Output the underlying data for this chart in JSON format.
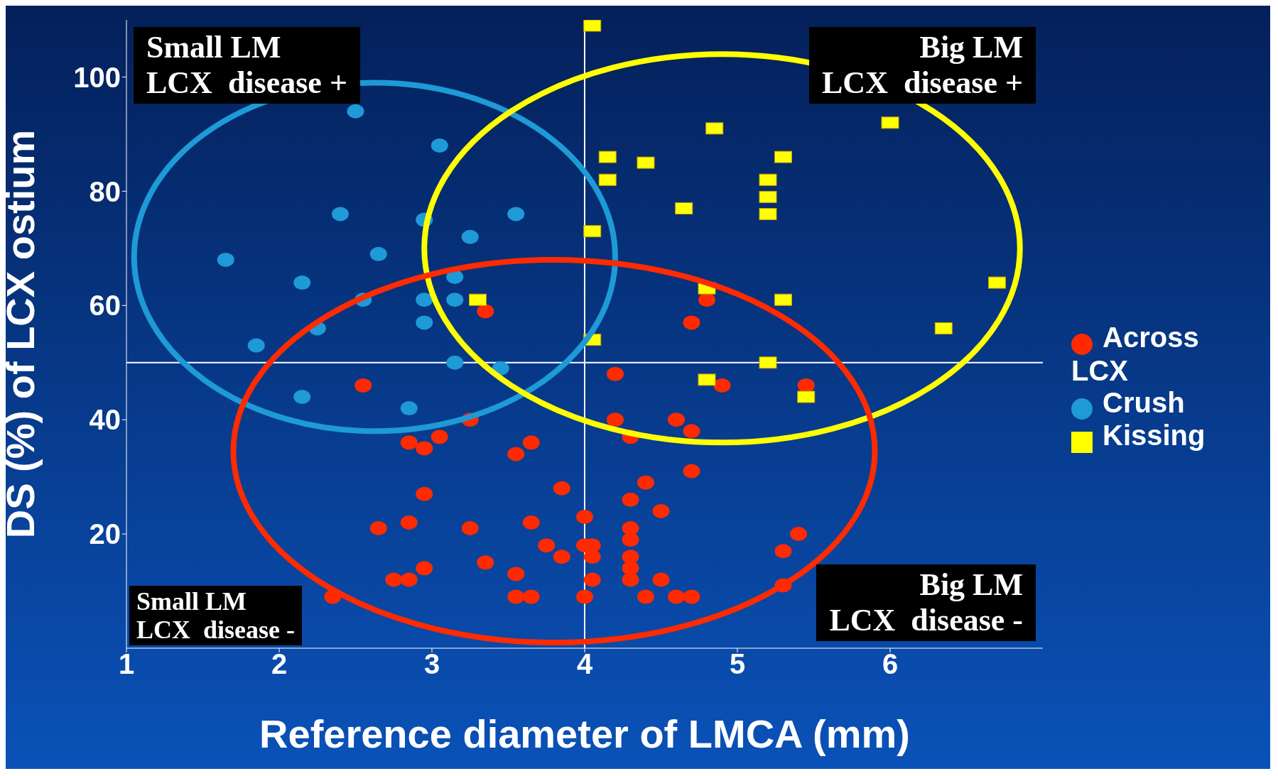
{
  "chart_data": {
    "type": "scatter",
    "xlabel": "Reference diameter of LMCA (mm)",
    "ylabel": "DS (%) of LCX ostium",
    "xlim": [
      1,
      7
    ],
    "xticks": [
      1,
      2,
      3,
      4,
      5,
      6
    ],
    "ylim": [
      0,
      110
    ],
    "yticks": [
      20,
      40,
      60,
      80,
      100
    ],
    "grid": false,
    "legend": "right",
    "ref_lines": [
      {
        "axis": "y",
        "value": 50,
        "color": "#ffffff"
      },
      {
        "axis": "x",
        "value": 4,
        "color": "#ffffff"
      }
    ],
    "annotations": [
      "Small LM\nLCX  disease +",
      "Big LM\nLCX  disease +",
      "Small LM\nLCX  disease -",
      "Big LM\nLCX  disease -"
    ],
    "series": [
      {
        "name": "Across LCX",
        "color": "#ff2a00",
        "marker": "circle",
        "x": [
          3.35,
          4.8,
          4.7,
          2.55,
          4.2,
          4.9,
          5.45,
          4.2,
          4.3,
          4.6,
          4.7,
          3.25,
          2.85,
          2.95,
          3.05,
          3.65,
          3.55,
          4.7,
          2.95,
          3.85,
          4.4,
          4.3,
          4,
          4.5,
          2.65,
          2.85,
          3.25,
          3.65,
          4.3,
          4.3,
          5.4,
          3.75,
          4,
          4.05,
          4.05,
          4.3,
          3.85,
          5.3,
          3.35,
          2.95,
          3.55,
          4.3,
          2.75,
          2.85,
          4.05,
          4.3,
          4.5,
          5.3,
          2.35,
          3.55,
          3.65,
          4,
          4.4,
          4.6,
          4.7
        ],
        "values": [
          59,
          61,
          57,
          46,
          48,
          46,
          46,
          40,
          37,
          40,
          38,
          40,
          36,
          35,
          37,
          36,
          34,
          31,
          27,
          28,
          29,
          26,
          23,
          24,
          21,
          22,
          21,
          22,
          21,
          19,
          20,
          18,
          18,
          18,
          16,
          16,
          16,
          17,
          15,
          14,
          13,
          14,
          12,
          12,
          12,
          12,
          12,
          11,
          9,
          9,
          9,
          9,
          9,
          9,
          9
        ]
      },
      {
        "name": "Crush",
        "color": "#1e9ad6",
        "marker": "circle",
        "x": [
          2.5,
          3.05,
          2.4,
          2.95,
          3.55,
          3.25,
          1.65,
          2.65,
          2.15,
          3.15,
          2.55,
          2.95,
          3.15,
          2.25,
          1.85,
          2.95,
          3.15,
          3.45,
          2.15,
          2.85
        ],
        "values": [
          94,
          88,
          76,
          75,
          76,
          72,
          68,
          69,
          64,
          65,
          61,
          61,
          61,
          56,
          53,
          57,
          50,
          49,
          44,
          42
        ]
      },
      {
        "name": "Kissing",
        "color": "#ffff00",
        "marker": "square",
        "x": [
          4.05,
          4.15,
          4.15,
          4.4,
          4.85,
          5.3,
          5.2,
          5.2,
          5.2,
          4.65,
          6,
          4.05,
          3.3,
          4.8,
          5.3,
          6.7,
          6.35,
          4.05,
          5.2,
          4.8,
          5.45
        ],
        "values": [
          109,
          86,
          82,
          85,
          91,
          86,
          82,
          79,
          76,
          77,
          92,
          73,
          61,
          63,
          61,
          64,
          56,
          54,
          50,
          47,
          44
        ]
      }
    ]
  }
}
